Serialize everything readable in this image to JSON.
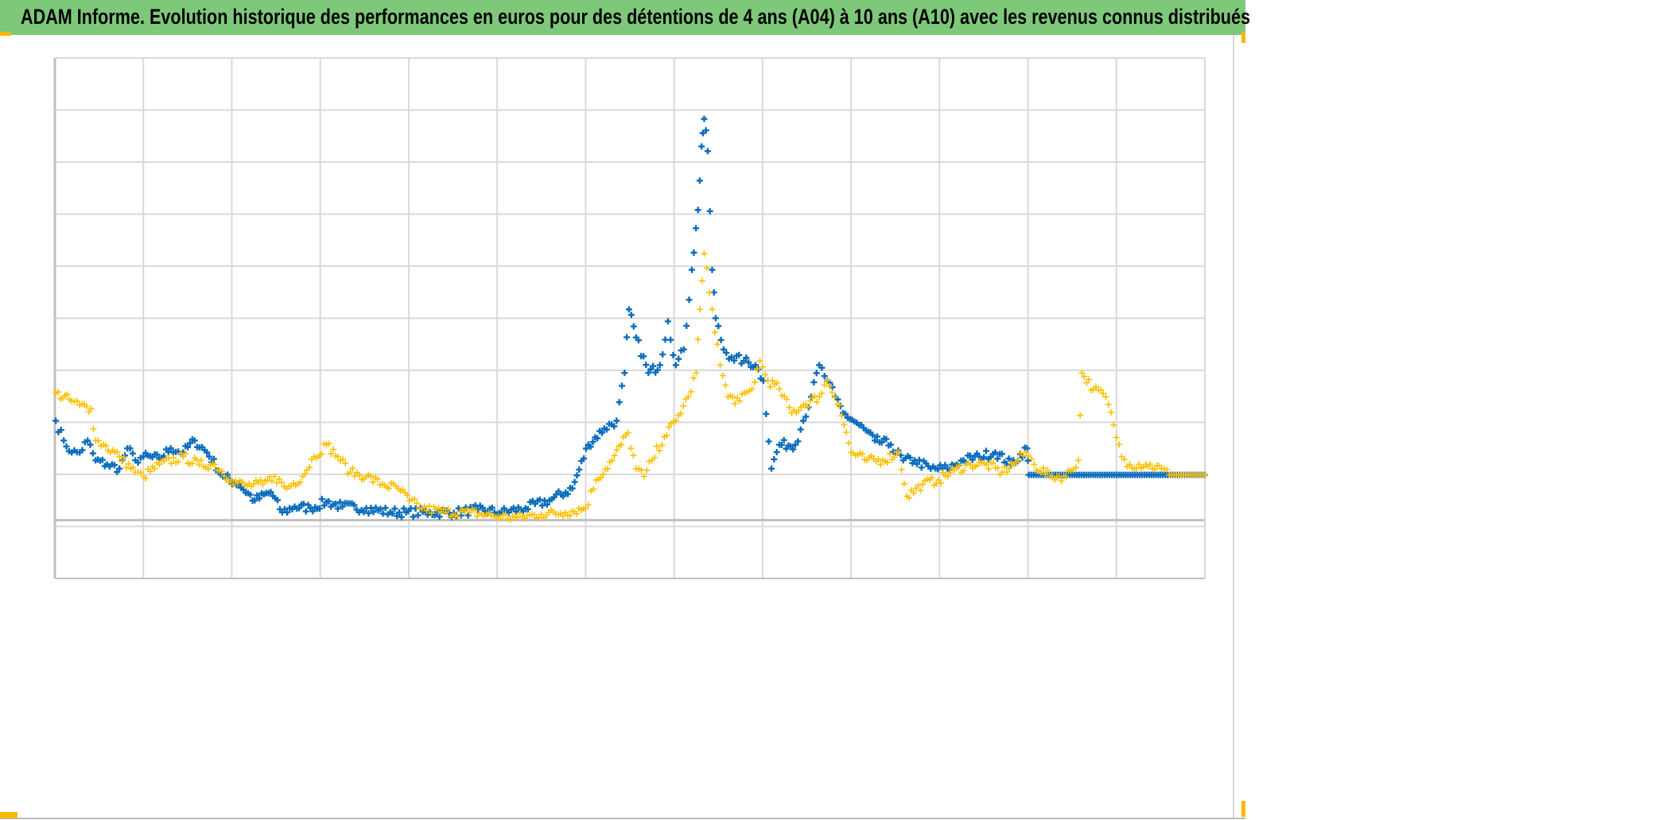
{
  "title": "ADAM Informe. Evolution historique des performances en euros pour des détentions de 4 ans (A04) à 10 ans (A10) avec les revenus connus distribués",
  "colors": {
    "title_bg": "#7ec87a",
    "A04": "#0a6cbc",
    "A10": "#ffc000",
    "grid": "#d9d9d9",
    "axis": "#bfbfbf"
  },
  "chart_data": {
    "type": "scatter",
    "title": "ADAM Informe. Evolution historique des performances en euros pour des détentions de 4 ans (A04) à 10 ans (A10) avec les revenus connus distribués",
    "xlabel": "",
    "ylabel": "",
    "xlim": [
      0,
      13
    ],
    "ylim": [
      -1,
      9
    ],
    "x_grid_step": 1,
    "y_grid_step": 1,
    "zero_line": 0.12,
    "grid": true,
    "legend": "none",
    "series": [
      {
        "name": "A04",
        "marker": "+",
        "color": "#0a6cbc",
        "points": [
          [
            0.01,
            2.03
          ],
          [
            0.1,
            1.65
          ],
          [
            0.19,
            1.42
          ],
          [
            0.28,
            1.42
          ],
          [
            0.37,
            1.65
          ],
          [
            0.46,
            1.27
          ],
          [
            0.59,
            1.19
          ],
          [
            0.73,
            1.11
          ],
          [
            0.82,
            1.5
          ],
          [
            0.91,
            1.27
          ],
          [
            1.0,
            1.34
          ],
          [
            1.18,
            1.3
          ],
          [
            1.31,
            1.5
          ],
          [
            1.45,
            1.42
          ],
          [
            1.58,
            1.65
          ],
          [
            1.72,
            1.42
          ],
          [
            1.9,
            0.96
          ],
          [
            2.08,
            0.81
          ],
          [
            2.26,
            0.5
          ],
          [
            2.44,
            0.66
          ],
          [
            2.57,
            0.27
          ],
          [
            2.71,
            0.38
          ],
          [
            2.89,
            0.35
          ],
          [
            3.07,
            0.47
          ],
          [
            3.25,
            0.38
          ],
          [
            3.52,
            0.35
          ],
          [
            3.79,
            0.27
          ],
          [
            3.97,
            0.27
          ],
          [
            4.24,
            0.27
          ],
          [
            4.51,
            0.26
          ],
          [
            4.78,
            0.32
          ],
          [
            5.05,
            0.27
          ],
          [
            5.32,
            0.35
          ],
          [
            5.59,
            0.5
          ],
          [
            5.85,
            0.73
          ],
          [
            6.03,
            1.57
          ],
          [
            6.21,
            1.88
          ],
          [
            6.35,
            2.03
          ],
          [
            6.44,
            2.95
          ],
          [
            6.49,
            4.17
          ],
          [
            6.57,
            3.63
          ],
          [
            6.71,
            2.95
          ],
          [
            6.84,
            3.1
          ],
          [
            6.93,
            3.94
          ],
          [
            7.02,
            3.1
          ],
          [
            7.11,
            3.4
          ],
          [
            7.2,
            4.93
          ],
          [
            7.27,
            6.08
          ],
          [
            7.31,
            7.3
          ],
          [
            7.34,
            7.83
          ],
          [
            7.38,
            7.21
          ],
          [
            7.43,
            4.93
          ],
          [
            7.47,
            4.0
          ],
          [
            7.56,
            3.4
          ],
          [
            7.65,
            3.25
          ],
          [
            7.79,
            3.18
          ],
          [
            7.92,
            3.1
          ],
          [
            8.01,
            2.8
          ],
          [
            8.1,
            1.11
          ],
          [
            8.19,
            1.57
          ],
          [
            8.37,
            1.57
          ],
          [
            8.46,
            2.03
          ],
          [
            8.55,
            2.49
          ],
          [
            8.64,
            3.1
          ],
          [
            8.73,
            2.8
          ],
          [
            8.82,
            2.49
          ],
          [
            8.91,
            2.18
          ],
          [
            9.09,
            1.95
          ],
          [
            9.27,
            1.65
          ],
          [
            9.45,
            1.57
          ],
          [
            9.59,
            1.27
          ],
          [
            9.72,
            1.27
          ],
          [
            9.9,
            1.11
          ],
          [
            10.09,
            1.11
          ],
          [
            10.27,
            1.27
          ],
          [
            10.45,
            1.34
          ],
          [
            10.63,
            1.42
          ],
          [
            10.81,
            1.19
          ],
          [
            10.99,
            1.5
          ],
          [
            11.01,
            0.99
          ],
          [
            11.5,
            0.99
          ],
          [
            12.0,
            0.99
          ],
          [
            12.5,
            0.99
          ],
          [
            13.0,
            0.99
          ]
        ]
      },
      {
        "name": "A10",
        "marker": "+",
        "color": "#ffc000",
        "points": [
          [
            0.01,
            2.56
          ],
          [
            0.19,
            2.41
          ],
          [
            0.28,
            2.33
          ],
          [
            0.41,
            2.26
          ],
          [
            0.46,
            1.65
          ],
          [
            0.55,
            1.57
          ],
          [
            0.73,
            1.34
          ],
          [
            0.91,
            1.04
          ],
          [
            1.0,
            0.96
          ],
          [
            1.18,
            1.19
          ],
          [
            1.45,
            1.34
          ],
          [
            1.63,
            1.19
          ],
          [
            1.81,
            1.19
          ],
          [
            1.99,
            0.89
          ],
          [
            2.17,
            0.78
          ],
          [
            2.35,
            0.81
          ],
          [
            2.48,
            0.96
          ],
          [
            2.62,
            0.73
          ],
          [
            2.8,
            0.96
          ],
          [
            2.93,
            1.34
          ],
          [
            3.07,
            1.57
          ],
          [
            3.2,
            1.34
          ],
          [
            3.34,
            1.04
          ],
          [
            3.52,
            0.96
          ],
          [
            3.7,
            0.81
          ],
          [
            3.88,
            0.73
          ],
          [
            4.01,
            0.5
          ],
          [
            4.15,
            0.35
          ],
          [
            4.42,
            0.27
          ],
          [
            4.69,
            0.27
          ],
          [
            4.96,
            0.2
          ],
          [
            5.23,
            0.17
          ],
          [
            5.5,
            0.23
          ],
          [
            5.77,
            0.27
          ],
          [
            6.0,
            0.35
          ],
          [
            6.12,
            0.89
          ],
          [
            6.3,
            1.27
          ],
          [
            6.48,
            1.8
          ],
          [
            6.57,
            1.11
          ],
          [
            6.66,
            0.96
          ],
          [
            6.75,
            1.27
          ],
          [
            6.89,
            1.72
          ],
          [
            7.02,
            2.03
          ],
          [
            7.16,
            2.49
          ],
          [
            7.25,
            2.95
          ],
          [
            7.29,
            4.17
          ],
          [
            7.34,
            5.24
          ],
          [
            7.43,
            4.17
          ],
          [
            7.52,
            3.1
          ],
          [
            7.61,
            2.49
          ],
          [
            7.74,
            2.41
          ],
          [
            7.88,
            2.64
          ],
          [
            7.97,
            3.18
          ],
          [
            8.06,
            2.8
          ],
          [
            8.19,
            2.64
          ],
          [
            8.33,
            2.18
          ],
          [
            8.46,
            2.33
          ],
          [
            8.64,
            2.49
          ],
          [
            8.73,
            2.8
          ],
          [
            8.87,
            2.33
          ],
          [
            9.0,
            1.42
          ],
          [
            9.18,
            1.27
          ],
          [
            9.36,
            1.27
          ],
          [
            9.54,
            1.42
          ],
          [
            9.63,
            0.58
          ],
          [
            9.81,
            0.81
          ],
          [
            9.99,
            0.89
          ],
          [
            10.17,
            1.08
          ],
          [
            10.35,
            1.19
          ],
          [
            10.53,
            1.19
          ],
          [
            10.71,
            1.04
          ],
          [
            10.89,
            1.27
          ],
          [
            10.98,
            1.42
          ],
          [
            11.07,
            1.19
          ],
          [
            11.25,
            0.96
          ],
          [
            11.43,
            0.96
          ],
          [
            11.57,
            1.27
          ],
          [
            11.61,
            2.95
          ],
          [
            11.74,
            2.64
          ],
          [
            11.88,
            2.49
          ],
          [
            11.97,
            1.95
          ],
          [
            12.06,
            1.34
          ],
          [
            12.15,
            1.19
          ],
          [
            12.33,
            1.19
          ],
          [
            12.51,
            1.11
          ],
          [
            12.6,
            0.99
          ],
          [
            13.0,
            0.99
          ]
        ]
      }
    ]
  }
}
